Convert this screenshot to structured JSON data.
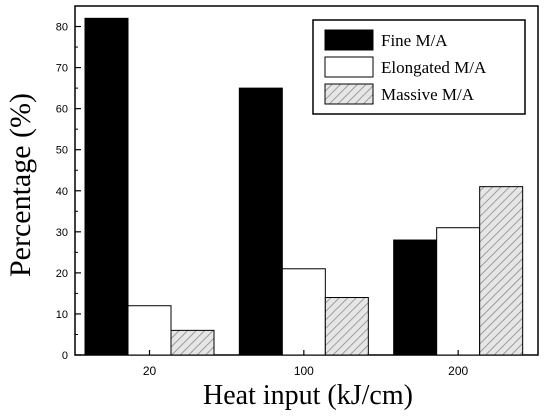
{
  "chart_data": {
    "type": "bar",
    "xlabel": "Heat input (kJ/cm)",
    "ylabel": "Percentage (%)",
    "categories": [
      "20",
      "100",
      "200"
    ],
    "ylim": [
      0,
      85
    ],
    "yticks": [
      0,
      10,
      20,
      30,
      40,
      50,
      60,
      70,
      80
    ],
    "legend_position": "top-right",
    "series": [
      {
        "name": "Fine M/A",
        "values": [
          82,
          65,
          28
        ],
        "fill": "#000000",
        "pattern": "solid"
      },
      {
        "name": "Elongated M/A",
        "values": [
          12,
          21,
          31
        ],
        "fill": "#ffffff",
        "pattern": "none"
      },
      {
        "name": "Massive M/A",
        "values": [
          6,
          14,
          41
        ],
        "fill": "#d9d9d9",
        "pattern": "hatch"
      }
    ]
  }
}
